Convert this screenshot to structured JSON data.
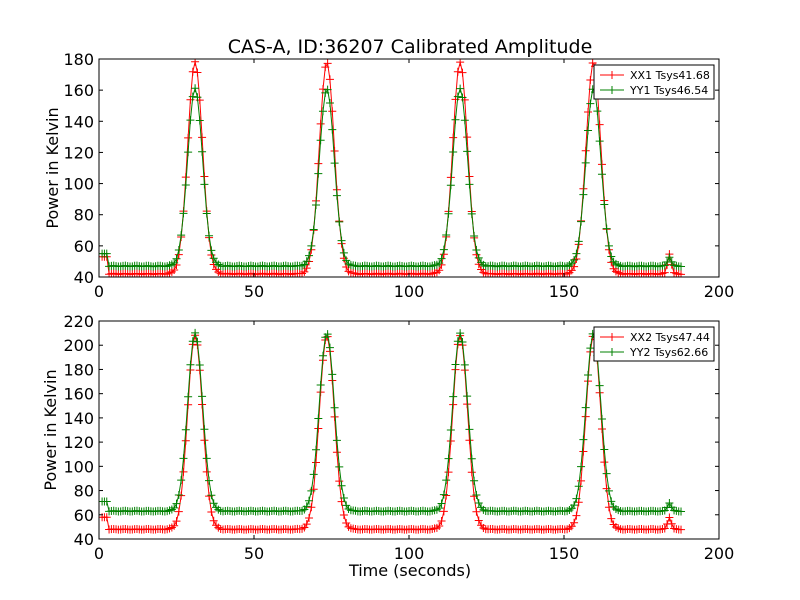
{
  "chart_data": [
    {
      "type": "line",
      "title": "CAS-A, ID:36207 Calibrated Amplitude",
      "xlabel": "",
      "ylabel": "Power in Kelvin",
      "xlim": [
        0,
        200
      ],
      "ylim": [
        40,
        180
      ],
      "xticks": [
        0,
        50,
        100,
        150,
        200
      ],
      "yticks": [
        40,
        60,
        80,
        100,
        120,
        140,
        160,
        180
      ],
      "grid": false,
      "legend_position": "top-right",
      "marker": "+",
      "series": [
        {
          "name": "XX1 Tsys41.68",
          "color": "#ff0000",
          "baseline": 42,
          "start_level": 53,
          "peaks": [
            {
              "center": 31,
              "height": 178
            },
            {
              "center": 73.5,
              "height": 178
            },
            {
              "center": 116.5,
              "height": 178
            },
            {
              "center": 159.5,
              "height": 178
            }
          ],
          "blip": {
            "center": 184,
            "height": 55
          },
          "x_range": [
            1,
            188
          ]
        },
        {
          "name": "YY1 Tsys46.54",
          "color": "#008000",
          "baseline": 47,
          "start_level": 55,
          "peaks": [
            {
              "center": 31,
              "height": 161
            },
            {
              "center": 73.5,
              "height": 161
            },
            {
              "center": 116.5,
              "height": 161
            },
            {
              "center": 159.5,
              "height": 161
            }
          ],
          "blip": {
            "center": 184,
            "height": 53
          },
          "x_range": [
            1,
            188
          ]
        }
      ]
    },
    {
      "type": "line",
      "title": "",
      "xlabel": "Time (seconds)",
      "ylabel": "Power in Kelvin",
      "xlim": [
        0,
        200
      ],
      "ylim": [
        40,
        220
      ],
      "xticks": [
        0,
        50,
        100,
        150,
        200
      ],
      "yticks": [
        40,
        60,
        80,
        100,
        120,
        140,
        160,
        180,
        200,
        220
      ],
      "grid": false,
      "legend_position": "top-right",
      "marker": "+",
      "series": [
        {
          "name": "XX2 Tsys47.44",
          "color": "#ff0000",
          "baseline": 48,
          "start_level": 58,
          "peaks": [
            {
              "center": 31,
              "height": 208
            },
            {
              "center": 73.5,
              "height": 208
            },
            {
              "center": 116.5,
              "height": 208
            },
            {
              "center": 159.5,
              "height": 208
            }
          ],
          "blip": {
            "center": 184,
            "height": 58
          },
          "x_range": [
            1,
            188
          ]
        },
        {
          "name": "YY2 Tsys62.66",
          "color": "#008000",
          "baseline": 63,
          "start_level": 71,
          "peaks": [
            {
              "center": 31,
              "height": 210
            },
            {
              "center": 73.5,
              "height": 210
            },
            {
              "center": 116.5,
              "height": 210
            },
            {
              "center": 159.5,
              "height": 210
            }
          ],
          "blip": {
            "center": 184,
            "height": 70
          },
          "x_range": [
            1,
            188
          ]
        }
      ]
    }
  ]
}
